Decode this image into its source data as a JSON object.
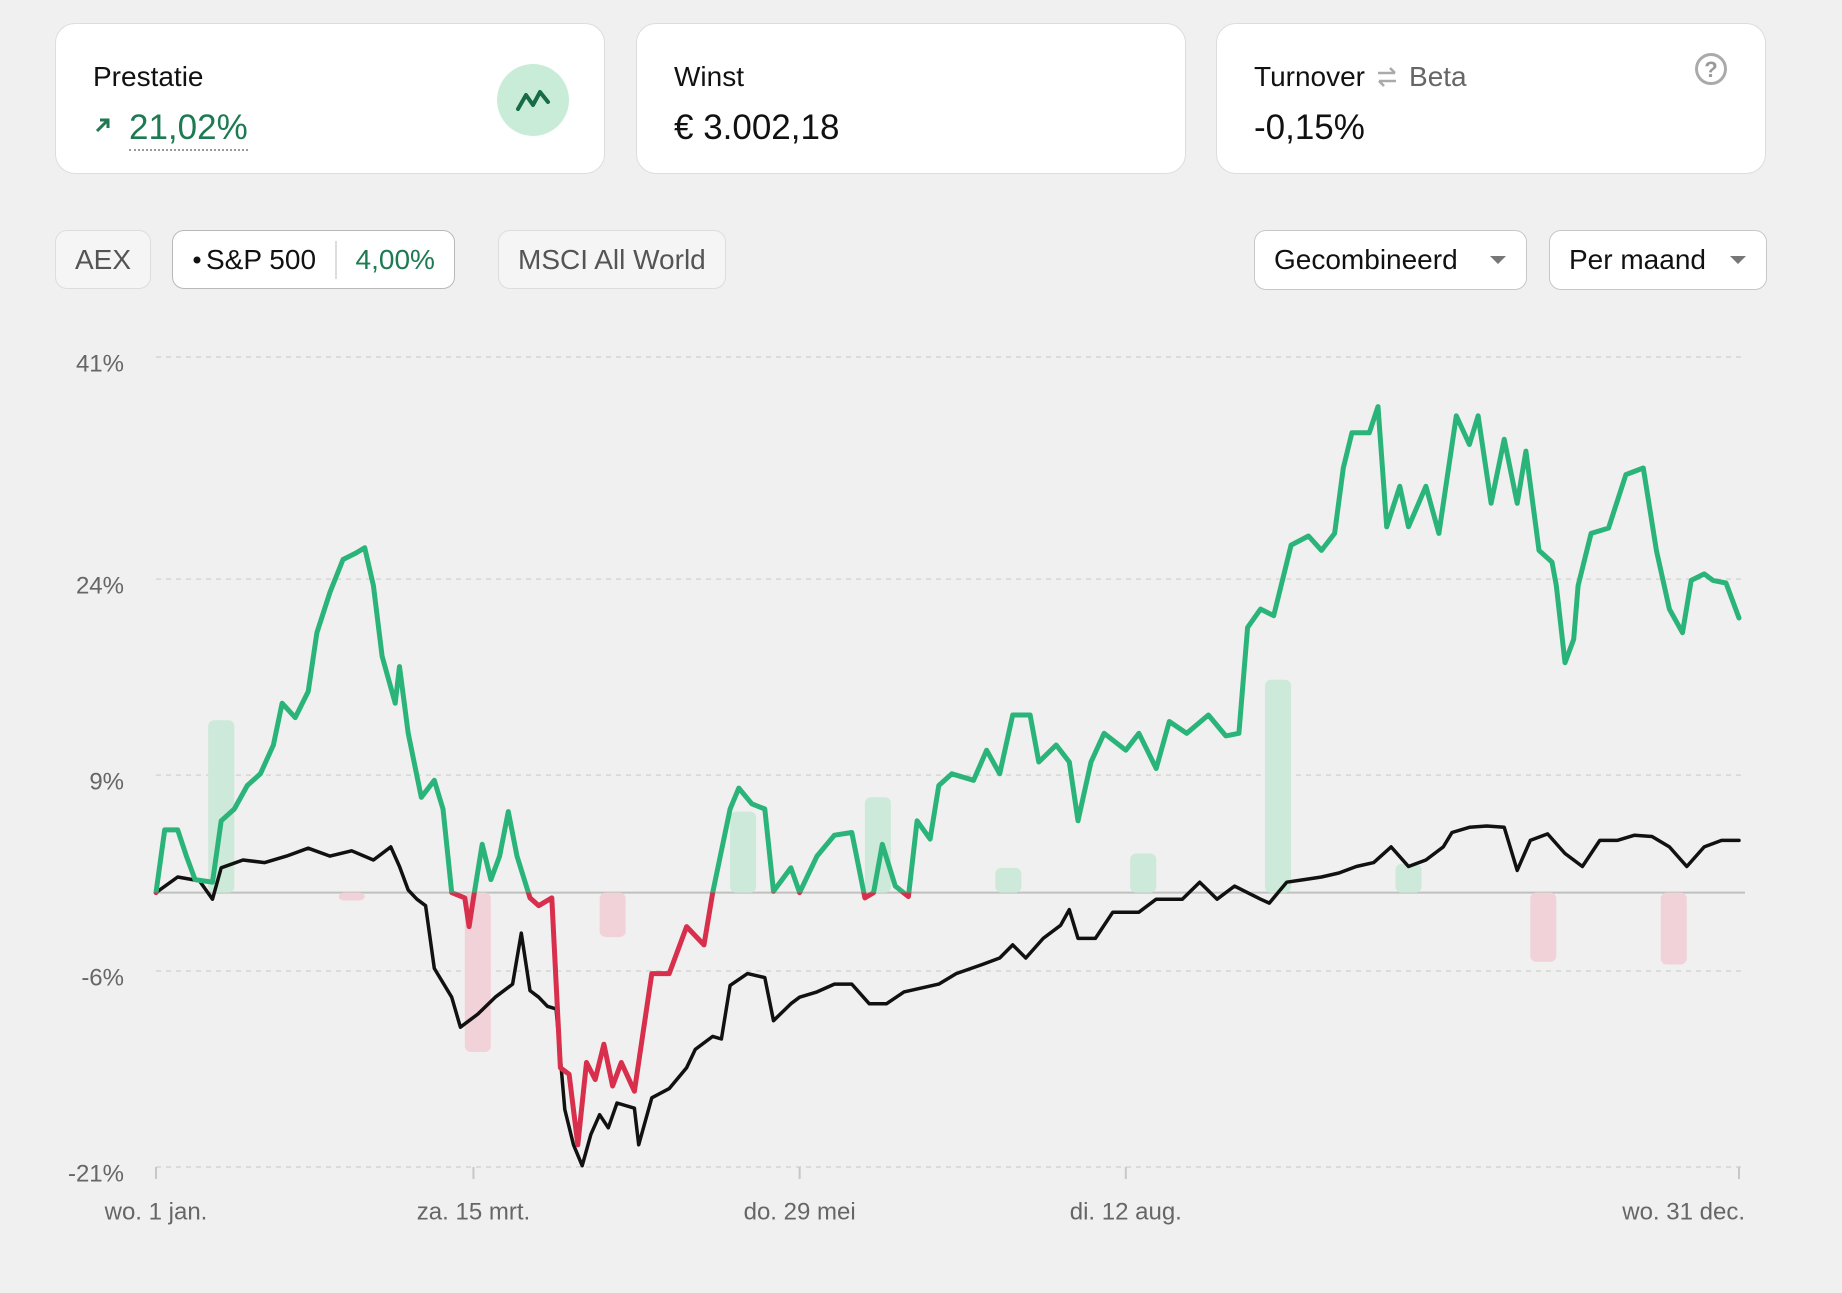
{
  "cards": [
    {
      "title": "Prestatie",
      "value": "21,02%"
    },
    {
      "title": "Winst",
      "value": "€ 3.002,18"
    },
    {
      "title": "Turnover",
      "badge": "Beta",
      "value": "-0,15%",
      "help": "?"
    }
  ],
  "benchmarks": [
    {
      "label": "AEX"
    },
    {
      "label": "S&P 500",
      "value": "4,00%"
    },
    {
      "label": "MSCI All World"
    }
  ],
  "dropdowns": [
    "Gecombineerd",
    "Per maand"
  ],
  "chart_data": {
    "type": "line",
    "xlim": [
      0,
      364
    ],
    "xticks": [
      {
        "value": 0,
        "label": "wo. 1 jan."
      },
      {
        "value": 73,
        "label": "za. 15 mrt."
      },
      {
        "value": 148,
        "label": "do. 29 mei"
      },
      {
        "value": 223,
        "label": "di. 12 aug."
      },
      {
        "value": 364,
        "label": "wo. 31 dec."
      }
    ],
    "ylim": [
      -21,
      41
    ],
    "yticks": [
      {
        "value": 41,
        "label": "41%"
      },
      {
        "value": 24,
        "label": "24%"
      },
      {
        "value": 9,
        "label": "9%"
      },
      {
        "value": -6,
        "label": "-6%"
      },
      {
        "value": -21,
        "label": "-21%"
      }
    ],
    "grid": true,
    "series": [
      {
        "type": "bar",
        "color": "#cde9da",
        "negative_color": "#f2d2d9",
        "x": [
          15,
          45,
          74,
          105,
          135,
          166,
          196,
          227,
          258,
          288,
          319,
          349
        ],
        "values": [
          13.2,
          -0.6,
          -12.2,
          -3.4,
          6.2,
          7.3,
          1.9,
          3,
          16.3,
          2.2,
          -5.3,
          -5.5
        ]
      },
      {
        "type": "line",
        "color": "#111111",
        "x": [
          0,
          5,
          10,
          13,
          15,
          20,
          25,
          30,
          35,
          40,
          45,
          50,
          54,
          56,
          58,
          60,
          62,
          64,
          68,
          70,
          74,
          78,
          82,
          84,
          86,
          88,
          90,
          92,
          94,
          96,
          98,
          100,
          102,
          104,
          106,
          110,
          111,
          114,
          118,
          122,
          124,
          128,
          130,
          132,
          136,
          140,
          142,
          146,
          148,
          152,
          156,
          160,
          164,
          168,
          172,
          180,
          184,
          190,
          194,
          197,
          200,
          204,
          208,
          210,
          212,
          216,
          220,
          226,
          230,
          236,
          240,
          244,
          248,
          254,
          256,
          260,
          264,
          268,
          272,
          276,
          280,
          284,
          288,
          292,
          296,
          298,
          302,
          306,
          310,
          313,
          316,
          320,
          324,
          328,
          332,
          336,
          340,
          344,
          348,
          352,
          356,
          360,
          364
        ],
        "values": [
          0,
          1.2,
          0.9,
          -0.5,
          1.9,
          2.5,
          2.3,
          2.8,
          3.4,
          2.8,
          3.2,
          2.5,
          3.5,
          2,
          0.2,
          -0.5,
          -1,
          -5.8,
          -8,
          -10.3,
          -9.3,
          -8,
          -7,
          -3.1,
          -7.5,
          -8,
          -8.7,
          -8.9,
          -16.6,
          -19.3,
          -20.9,
          -18.5,
          -17,
          -18,
          -16.1,
          -16.5,
          -19.3,
          -15.7,
          -15,
          -13.4,
          -12,
          -11,
          -11.2,
          -7.1,
          -6.2,
          -6.5,
          -9.8,
          -8.5,
          -8,
          -7.6,
          -7,
          -7,
          -8.5,
          -8.5,
          -7.6,
          -7,
          -6.2,
          -5.5,
          -5,
          -4,
          -5,
          -3.5,
          -2.5,
          -1.3,
          -3.5,
          -3.5,
          -1.5,
          -1.5,
          -0.5,
          -0.5,
          0.8,
          -0.5,
          0.5,
          -0.5,
          -0.8,
          0.8,
          1,
          1.2,
          1.5,
          2,
          2.3,
          3.5,
          2,
          2.5,
          3.5,
          4.6,
          5,
          5.1,
          5,
          1.7,
          4,
          4.5,
          3,
          2,
          4,
          4,
          4.4,
          4.3,
          3.5,
          2,
          3.5,
          4,
          4
        ]
      },
      {
        "type": "line",
        "color": "#2bb47a",
        "negative_color": "#d72f4c",
        "x": [
          0,
          2,
          5,
          7,
          9,
          13,
          15,
          18,
          21,
          24,
          27,
          29,
          32,
          35,
          37,
          40,
          43,
          46,
          48,
          50,
          52,
          55,
          56,
          58,
          61,
          64,
          66,
          68,
          71,
          72,
          73,
          75,
          77,
          79,
          81,
          83,
          86,
          88,
          91,
          93,
          95,
          97,
          99,
          101,
          103,
          105,
          107,
          110,
          112,
          114,
          118,
          122,
          126,
          128,
          132,
          134,
          137,
          140,
          142,
          146,
          148,
          152,
          156,
          160,
          163,
          165,
          167,
          170,
          173,
          175,
          178,
          180,
          183,
          188,
          191,
          194,
          197,
          201,
          203,
          207,
          210,
          212,
          215,
          218,
          223,
          226,
          230,
          233,
          237,
          242,
          246,
          249,
          251,
          254,
          257,
          261,
          265,
          268,
          271,
          273,
          275,
          279,
          281,
          283,
          286,
          288,
          292,
          295,
          299,
          302,
          304,
          307,
          310,
          313,
          315,
          318,
          321,
          322,
          324,
          326,
          327,
          330,
          334,
          338,
          342,
          345,
          348,
          351,
          353,
          356,
          358,
          361,
          364
        ],
        "values": [
          0,
          4.8,
          4.8,
          2.8,
          1,
          0.8,
          5.5,
          6.4,
          8.2,
          9.1,
          11.3,
          14.5,
          13.4,
          15.4,
          19.9,
          23,
          25.5,
          26,
          26.4,
          23.5,
          18.1,
          14.5,
          17.3,
          12.2,
          7.3,
          8.6,
          6.4,
          0,
          -0.4,
          -2.6,
          -0.4,
          3.7,
          1,
          2.8,
          6.2,
          2.8,
          -0.4,
          -1,
          -0.4,
          -13.4,
          -13.9,
          -19.3,
          -13,
          -14.3,
          -11.6,
          -14.8,
          -13,
          -15.2,
          -10.7,
          -6.2,
          -6.2,
          -2.6,
          -4,
          0,
          6.4,
          8,
          6.8,
          6.4,
          0.1,
          1.9,
          0,
          2.8,
          4.4,
          4.6,
          -0.4,
          0,
          3.7,
          0.5,
          -0.3,
          5.5,
          4.1,
          8.2,
          9.1,
          8.6,
          10.9,
          9.1,
          13.6,
          13.6,
          10,
          11.3,
          10,
          5.5,
          10,
          12.2,
          10.9,
          12.2,
          9.5,
          13.1,
          12.2,
          13.6,
          12,
          12.2,
          20.3,
          21.7,
          21.2,
          26.6,
          27.3,
          26.2,
          27.5,
          32.5,
          35.2,
          35.2,
          37.2,
          28,
          31.1,
          28,
          31.1,
          27.5,
          36.5,
          34.3,
          36.5,
          29.8,
          34.7,
          29.8,
          33.8,
          26.2,
          25.3,
          23.5,
          17.6,
          19.4,
          23.5,
          27.5,
          27.9,
          32,
          32.5,
          26.2,
          21.7,
          19.9,
          23.9,
          24.4,
          23.9,
          23.7,
          21.02
        ]
      }
    ]
  }
}
